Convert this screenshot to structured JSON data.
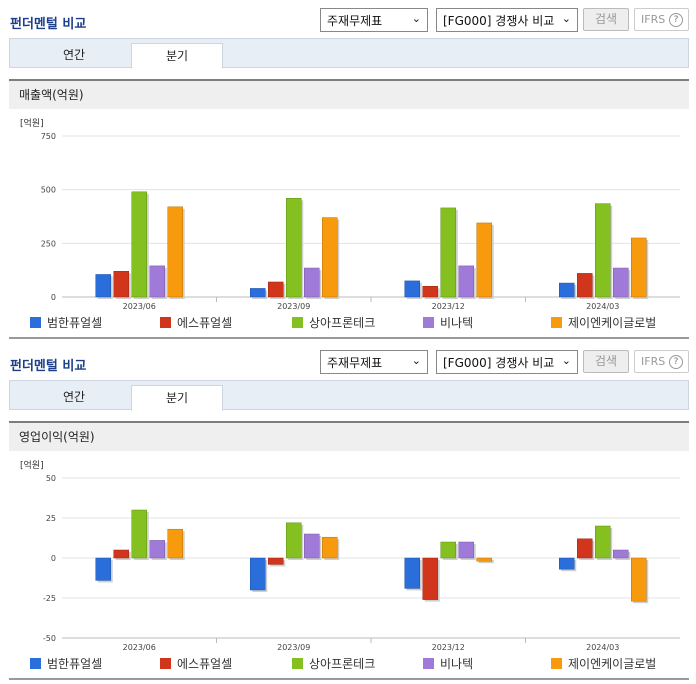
{
  "panels": [
    {
      "title": "펀더멘털 비교",
      "select_statement": "주재무제표",
      "select_compare": "[FG000] 경쟁사 비교",
      "search_label": "검색",
      "ifrs_label": "IFRS",
      "help_label": "?",
      "tabs": [
        {
          "label": "연간"
        },
        {
          "label": "분기"
        }
      ],
      "section_title": "매출액(억원)",
      "unit_label": "[억원]"
    },
    {
      "title": "펀더멘털 비교",
      "select_statement": "주재무제표",
      "select_compare": "[FG000] 경쟁사 비교",
      "search_label": "검색",
      "ifrs_label": "IFRS",
      "help_label": "?",
      "tabs": [
        {
          "label": "연간"
        },
        {
          "label": "분기"
        }
      ],
      "section_title": "영업이익(억원)",
      "unit_label": "[억원]"
    }
  ],
  "colors": {
    "범한퓨얼셀": "#2a6edb",
    "에스퓨얼셀": "#d1361c",
    "상아프론테크": "#84c020",
    "비나텍": "#a07ad8",
    "제이엔케이글로벌": "#f79a0e"
  },
  "chart_data": [
    {
      "type": "bar",
      "title": "매출액(억원)",
      "ylabel": "[억원]",
      "categories": [
        "2023/06",
        "2023/09",
        "2023/12",
        "2024/03"
      ],
      "ylim": [
        0,
        750
      ],
      "yticks": [
        0,
        250,
        500,
        750
      ],
      "grid": true,
      "legend": "bottom",
      "series": [
        {
          "name": "범한퓨얼셀",
          "values": [
            105,
            40,
            75,
            65
          ]
        },
        {
          "name": "에스퓨얼셀",
          "values": [
            120,
            70,
            50,
            110
          ]
        },
        {
          "name": "상아프론테크",
          "values": [
            490,
            460,
            415,
            435
          ]
        },
        {
          "name": "비나텍",
          "values": [
            145,
            135,
            145,
            135
          ]
        },
        {
          "name": "제이엔케이글로벌",
          "values": [
            420,
            370,
            345,
            275
          ]
        }
      ]
    },
    {
      "type": "bar",
      "title": "영업이익(억원)",
      "ylabel": "[억원]",
      "categories": [
        "2023/06",
        "2023/09",
        "2023/12",
        "2024/03"
      ],
      "ylim": [
        -50,
        50
      ],
      "yticks": [
        -50,
        -25,
        0,
        25,
        50
      ],
      "grid": true,
      "legend": "bottom",
      "series": [
        {
          "name": "범한퓨얼셀",
          "values": [
            -14,
            -20,
            -19,
            -7
          ]
        },
        {
          "name": "에스퓨얼셀",
          "values": [
            5,
            -4,
            -26,
            12
          ]
        },
        {
          "name": "상아프론테크",
          "values": [
            30,
            22,
            10,
            20
          ]
        },
        {
          "name": "비나텍",
          "values": [
            11,
            15,
            10,
            5
          ]
        },
        {
          "name": "제이엔케이글로벌",
          "values": [
            18,
            13,
            -2,
            -27
          ]
        }
      ]
    }
  ]
}
